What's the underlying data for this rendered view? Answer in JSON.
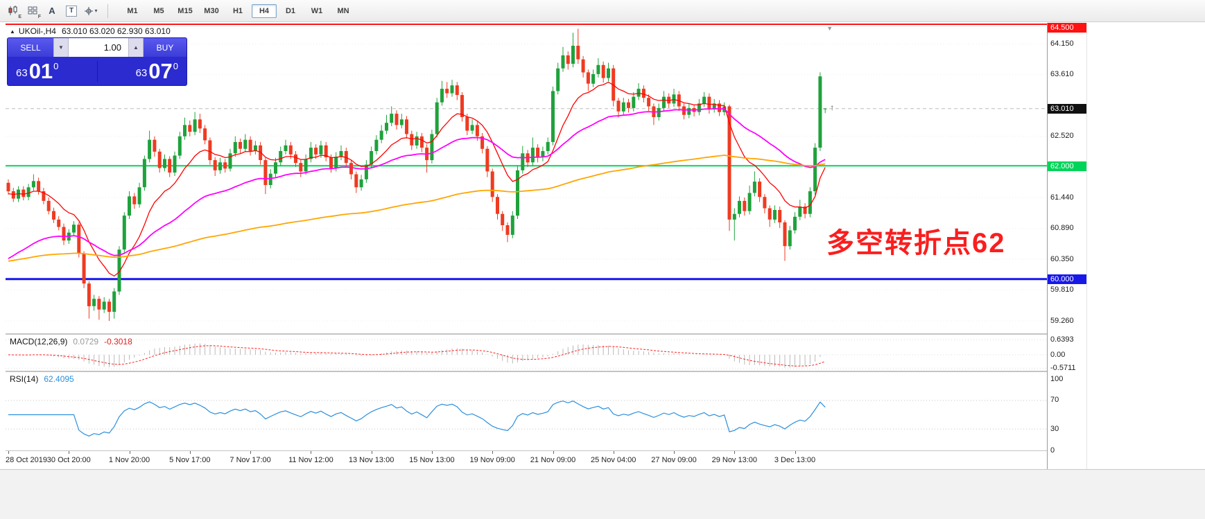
{
  "toolbar": {
    "icon_candles_sub": "E",
    "icon_grid_sub": "F",
    "icon_font": "A",
    "icon_text": "T",
    "cursor_caret": "▾",
    "timeframes": [
      "M1",
      "M5",
      "M15",
      "M30",
      "H1",
      "H4",
      "D1",
      "W1",
      "MN"
    ],
    "active_timeframe": "H4"
  },
  "chart": {
    "symbol_arrow": "▲",
    "symbol": "UKOil-,H4",
    "ohlc": "63.010 63.020 62.930 63.010",
    "trade": {
      "sell_label": "SELL",
      "buy_label": "BUY",
      "volume": "1.00",
      "spinner_down": "▼",
      "spinner_up": "▲",
      "sell_small": "63",
      "sell_big": "01",
      "sell_sup": "0",
      "buy_small": "63",
      "buy_big": "07",
      "buy_sup": "0"
    },
    "annotation": {
      "text": "多空转折点62",
      "color": "#fa1e1e"
    }
  },
  "price_scale": {
    "items": [
      {
        "v": 64.5,
        "label": "64.500",
        "style": "badge-red"
      },
      {
        "v": 64.15,
        "label": "64.150",
        "style": "tick"
      },
      {
        "v": 63.61,
        "label": "63.610",
        "style": "tick"
      },
      {
        "v": 63.01,
        "label": "63.010",
        "style": "badge-black"
      },
      {
        "v": 62.52,
        "label": "62.520",
        "style": "tick"
      },
      {
        "v": 62.0,
        "label": "62.000",
        "style": "badge-green"
      },
      {
        "v": 61.44,
        "label": "61.440",
        "style": "tick"
      },
      {
        "v": 60.89,
        "label": "60.890",
        "style": "tick"
      },
      {
        "v": 60.35,
        "label": "60.350",
        "style": "tick"
      },
      {
        "v": 60.0,
        "label": "60.000",
        "style": "badge-blue"
      },
      {
        "v": 59.81,
        "label": "59.810",
        "style": "tick"
      },
      {
        "v": 59.26,
        "label": "59.260",
        "style": "tick"
      }
    ]
  },
  "macd_panel": {
    "title": "MACD(12,26,9)",
    "value_main": "0.0729",
    "value_signal": "-0.3018",
    "scale": [
      {
        "v": 0.6393,
        "label": "0.6393"
      },
      {
        "v": 0,
        "label": "0.00"
      },
      {
        "v": -0.5711,
        "label": "-0.5711"
      }
    ]
  },
  "rsi_panel": {
    "title": "RSI(14)",
    "value": "62.4095",
    "scale": [
      {
        "v": 100,
        "label": "100"
      },
      {
        "v": 70,
        "label": "70"
      },
      {
        "v": 30,
        "label": "30"
      },
      {
        "v": 0,
        "label": "0"
      }
    ]
  },
  "time_axis": {
    "labels": [
      {
        "i": 0,
        "label": "28 Oct 2019"
      },
      {
        "i": 12,
        "label": "30 Oct 20:00"
      },
      {
        "i": 24,
        "label": "1 Nov 20:00"
      },
      {
        "i": 36,
        "label": "5 Nov 17:00"
      },
      {
        "i": 48,
        "label": "7 Nov 17:00"
      },
      {
        "i": 60,
        "label": "11 Nov 12:00"
      },
      {
        "i": 72,
        "label": "13 Nov 13:00"
      },
      {
        "i": 84,
        "label": "15 Nov 13:00"
      },
      {
        "i": 96,
        "label": "19 Nov 09:00"
      },
      {
        "i": 108,
        "label": "21 Nov 09:00"
      },
      {
        "i": 120,
        "label": "25 Nov 04:00"
      },
      {
        "i": 132,
        "label": "27 Nov 09:00"
      },
      {
        "i": 144,
        "label": "29 Nov 13:00"
      },
      {
        "i": 156,
        "label": "3 Dec 13:00"
      }
    ]
  },
  "chart_data": {
    "type": "candlestick",
    "symbol": "UKOil-",
    "timeframe": "H4",
    "ohlc_current": {
      "open": 63.01,
      "high": 63.02,
      "low": 62.93,
      "close": 63.01
    },
    "bid": 63.01,
    "ylim": [
      59.0,
      64.56
    ],
    "candle_up_color": "#1fa23c",
    "candle_down_color": "#ee3b22",
    "hlines": [
      {
        "price": 64.5,
        "color": "#ff1212",
        "width": 2,
        "label": "64.500"
      },
      {
        "price": 62.0,
        "color": "#00d45a",
        "width": 2,
        "label": "62.000"
      },
      {
        "price": 60.0,
        "color": "#1616ee",
        "width": 3,
        "label": "60.000"
      }
    ],
    "moving_averages": [
      {
        "name": "ma-fast",
        "period": 12,
        "seed": 61.5,
        "color": "#ff0000",
        "width": 1.3
      },
      {
        "name": "ma-medium",
        "period": 40,
        "seed": 60.3,
        "color": "#ff00ff",
        "width": 1.8
      },
      {
        "name": "ma-slow",
        "period": 160,
        "seed": 60.3,
        "color": "#ffa500",
        "width": 1.8
      }
    ],
    "macd": {
      "fast": 12,
      "slow": 26,
      "signal": 9,
      "hist_color": "#b9b9b9",
      "signal_color": "#ff2222",
      "last_macd": 0.0729,
      "last_signal": -0.3018,
      "scale_max": 0.6393,
      "scale_min": -0.5711
    },
    "rsi": {
      "period": 14,
      "color": "#2a8fdd",
      "last": 62.4095,
      "levels": [
        70,
        30
      ],
      "range": [
        0,
        100
      ]
    },
    "candles": [
      [
        61.7,
        61.76,
        61.49,
        61.55
      ],
      [
        61.55,
        61.61,
        61.36,
        61.42
      ],
      [
        61.42,
        61.64,
        61.36,
        61.58
      ],
      [
        61.58,
        61.64,
        61.39,
        61.45
      ],
      [
        61.45,
        61.68,
        61.39,
        61.62
      ],
      [
        61.62,
        61.85,
        61.56,
        61.73
      ],
      [
        61.73,
        61.79,
        61.49,
        61.55
      ],
      [
        61.55,
        61.61,
        61.32,
        61.38
      ],
      [
        61.38,
        61.44,
        61.14,
        61.2
      ],
      [
        61.2,
        61.26,
        60.99,
        61.05
      ],
      [
        61.05,
        61.11,
        60.86,
        60.92
      ],
      [
        60.92,
        60.98,
        60.6,
        60.68
      ],
      [
        60.68,
        60.88,
        60.62,
        60.82
      ],
      [
        60.82,
        61.02,
        60.76,
        60.96
      ],
      [
        60.96,
        61.0,
        60.38,
        60.45
      ],
      [
        60.45,
        60.49,
        59.84,
        59.92
      ],
      [
        59.92,
        59.96,
        59.3,
        59.52
      ],
      [
        59.52,
        59.72,
        59.44,
        59.65
      ],
      [
        59.65,
        59.7,
        59.28,
        59.46
      ],
      [
        59.46,
        59.68,
        59.4,
        59.6
      ],
      [
        59.6,
        59.65,
        59.26,
        59.42
      ],
      [
        59.42,
        59.84,
        59.3,
        59.78
      ],
      [
        59.78,
        60.58,
        59.72,
        60.52
      ],
      [
        60.52,
        61.18,
        60.46,
        61.12
      ],
      [
        61.12,
        61.55,
        61.06,
        61.46
      ],
      [
        61.46,
        61.52,
        61.24,
        61.32
      ],
      [
        61.32,
        61.7,
        61.26,
        61.62
      ],
      [
        61.62,
        62.18,
        61.56,
        62.12
      ],
      [
        62.12,
        62.62,
        62.06,
        62.46
      ],
      [
        62.46,
        62.52,
        62.16,
        62.25
      ],
      [
        62.25,
        62.3,
        61.88,
        61.96
      ],
      [
        61.96,
        62.2,
        61.9,
        62.12
      ],
      [
        62.12,
        62.17,
        61.8,
        61.88
      ],
      [
        61.88,
        62.25,
        61.82,
        62.18
      ],
      [
        62.18,
        62.6,
        62.12,
        62.52
      ],
      [
        62.52,
        62.85,
        62.46,
        62.72
      ],
      [
        62.72,
        62.8,
        62.52,
        62.6
      ],
      [
        62.6,
        62.95,
        62.54,
        62.82
      ],
      [
        62.82,
        62.92,
        62.58,
        62.66
      ],
      [
        62.66,
        62.72,
        62.38,
        62.45
      ],
      [
        62.45,
        62.5,
        62.02,
        62.1
      ],
      [
        62.1,
        62.15,
        61.82,
        61.92
      ],
      [
        61.92,
        62.14,
        61.86,
        62.06
      ],
      [
        62.06,
        62.12,
        61.88,
        61.95
      ],
      [
        61.95,
        62.3,
        61.9,
        62.22
      ],
      [
        62.22,
        62.52,
        62.16,
        62.42
      ],
      [
        62.42,
        62.48,
        62.22,
        62.3
      ],
      [
        62.3,
        62.56,
        62.24,
        62.46
      ],
      [
        62.46,
        62.52,
        62.18,
        62.26
      ],
      [
        62.26,
        62.44,
        62.2,
        62.36
      ],
      [
        62.36,
        62.42,
        62.02,
        62.1
      ],
      [
        62.1,
        62.14,
        61.5,
        61.66
      ],
      [
        61.66,
        61.94,
        61.6,
        61.86
      ],
      [
        61.86,
        62.14,
        61.8,
        62.06
      ],
      [
        62.06,
        62.34,
        62.0,
        62.26
      ],
      [
        62.26,
        62.46,
        62.2,
        62.36
      ],
      [
        62.36,
        62.42,
        62.12,
        62.2
      ],
      [
        62.2,
        62.26,
        61.98,
        62.05
      ],
      [
        62.05,
        62.1,
        61.8,
        61.9
      ],
      [
        61.9,
        62.2,
        61.84,
        62.12
      ],
      [
        62.12,
        62.42,
        62.06,
        62.32
      ],
      [
        62.32,
        62.38,
        62.12,
        62.2
      ],
      [
        62.2,
        62.44,
        62.14,
        62.36
      ],
      [
        62.36,
        62.42,
        62.08,
        62.15
      ],
      [
        62.15,
        62.2,
        61.88,
        61.96
      ],
      [
        61.96,
        62.24,
        61.9,
        62.16
      ],
      [
        62.16,
        62.36,
        62.1,
        62.26
      ],
      [
        62.26,
        62.32,
        61.98,
        62.05
      ],
      [
        62.05,
        62.1,
        61.76,
        61.85
      ],
      [
        61.85,
        61.9,
        61.52,
        61.62
      ],
      [
        61.62,
        61.84,
        61.56,
        61.76
      ],
      [
        61.76,
        62.1,
        61.7,
        62.02
      ],
      [
        62.02,
        62.34,
        61.96,
        62.26
      ],
      [
        62.26,
        62.54,
        62.2,
        62.46
      ],
      [
        62.46,
        62.72,
        62.4,
        62.62
      ],
      [
        62.62,
        62.9,
        62.56,
        62.76
      ],
      [
        62.76,
        63.05,
        62.7,
        62.92
      ],
      [
        62.92,
        62.98,
        62.64,
        62.72
      ],
      [
        62.72,
        62.92,
        62.66,
        62.82
      ],
      [
        62.82,
        62.88,
        62.48,
        62.56
      ],
      [
        62.56,
        62.62,
        62.28,
        62.36
      ],
      [
        62.36,
        62.6,
        62.3,
        62.52
      ],
      [
        62.52,
        62.58,
        62.24,
        62.32
      ],
      [
        62.32,
        62.38,
        61.88,
        62.1
      ],
      [
        62.1,
        62.64,
        62.04,
        62.56
      ],
      [
        62.56,
        63.2,
        62.5,
        63.12
      ],
      [
        63.12,
        63.5,
        63.06,
        63.36
      ],
      [
        63.36,
        63.48,
        63.2,
        63.28
      ],
      [
        63.28,
        63.52,
        63.22,
        63.42
      ],
      [
        63.42,
        63.48,
        63.16,
        63.25
      ],
      [
        63.25,
        63.3,
        62.78,
        62.86
      ],
      [
        62.86,
        62.92,
        62.54,
        62.62
      ],
      [
        62.62,
        62.82,
        62.56,
        62.72
      ],
      [
        62.72,
        62.78,
        62.44,
        62.52
      ],
      [
        62.52,
        62.58,
        62.22,
        62.3
      ],
      [
        62.3,
        62.35,
        61.8,
        61.9
      ],
      [
        61.9,
        61.95,
        61.36,
        61.45
      ],
      [
        61.45,
        61.5,
        61.05,
        61.15
      ],
      [
        61.15,
        61.2,
        60.85,
        60.95
      ],
      [
        60.95,
        61.0,
        60.65,
        60.78
      ],
      [
        60.78,
        61.2,
        60.72,
        61.12
      ],
      [
        61.12,
        62.0,
        61.06,
        61.92
      ],
      [
        61.92,
        62.35,
        61.86,
        62.22
      ],
      [
        62.22,
        62.28,
        61.98,
        62.06
      ],
      [
        62.06,
        62.5,
        62.0,
        62.32
      ],
      [
        62.32,
        62.38,
        62.06,
        62.15
      ],
      [
        62.15,
        62.34,
        62.08,
        62.26
      ],
      [
        62.26,
        62.5,
        62.2,
        62.42
      ],
      [
        62.42,
        63.4,
        62.36,
        63.32
      ],
      [
        63.32,
        63.82,
        63.26,
        63.72
      ],
      [
        63.72,
        64.1,
        63.66,
        63.95
      ],
      [
        63.95,
        64.02,
        63.7,
        63.8
      ],
      [
        63.8,
        64.35,
        63.74,
        64.12
      ],
      [
        64.12,
        64.42,
        63.8,
        63.88
      ],
      [
        63.88,
        63.94,
        63.56,
        63.65
      ],
      [
        63.65,
        63.7,
        63.32,
        63.45
      ],
      [
        63.45,
        63.7,
        63.39,
        63.62
      ],
      [
        63.62,
        63.9,
        63.56,
        63.78
      ],
      [
        63.78,
        63.84,
        63.47,
        63.55
      ],
      [
        63.55,
        63.82,
        63.49,
        63.72
      ],
      [
        63.72,
        63.78,
        63.05,
        63.15
      ],
      [
        63.15,
        63.2,
        62.85,
        62.96
      ],
      [
        62.96,
        63.2,
        62.9,
        63.12
      ],
      [
        63.12,
        63.18,
        62.94,
        63.02
      ],
      [
        63.02,
        63.3,
        62.96,
        63.22
      ],
      [
        63.22,
        63.46,
        63.16,
        63.36
      ],
      [
        63.36,
        63.42,
        63.12,
        63.2
      ],
      [
        63.2,
        63.26,
        62.97,
        63.05
      ],
      [
        63.05,
        63.1,
        62.72,
        62.86
      ],
      [
        62.86,
        63.1,
        62.8,
        63.02
      ],
      [
        63.02,
        63.32,
        62.96,
        63.22
      ],
      [
        63.22,
        63.28,
        63.02,
        63.1
      ],
      [
        63.1,
        63.36,
        63.04,
        63.26
      ],
      [
        63.26,
        63.32,
        62.97,
        63.05
      ],
      [
        63.05,
        63.1,
        62.82,
        62.9
      ],
      [
        62.9,
        63.1,
        62.84,
        63.02
      ],
      [
        63.02,
        63.08,
        62.87,
        62.95
      ],
      [
        62.95,
        63.18,
        62.89,
        63.1
      ],
      [
        63.1,
        63.3,
        63.04,
        63.22
      ],
      [
        63.22,
        63.28,
        62.92,
        63.0
      ],
      [
        63.0,
        63.18,
        62.94,
        63.1
      ],
      [
        63.1,
        63.16,
        62.88,
        62.95
      ],
      [
        62.95,
        63.12,
        62.89,
        63.05
      ],
      [
        63.05,
        63.08,
        60.85,
        61.05
      ],
      [
        61.05,
        61.25,
        60.68,
        61.15
      ],
      [
        61.15,
        61.46,
        61.09,
        61.38
      ],
      [
        61.38,
        61.44,
        61.12,
        61.2
      ],
      [
        61.2,
        61.65,
        61.14,
        61.52
      ],
      [
        61.52,
        61.9,
        61.46,
        61.72
      ],
      [
        61.72,
        61.78,
        61.36,
        61.45
      ],
      [
        61.45,
        61.5,
        61.16,
        61.25
      ],
      [
        61.25,
        61.3,
        60.92,
        61.05
      ],
      [
        61.05,
        61.3,
        60.99,
        61.22
      ],
      [
        61.22,
        61.28,
        60.9,
        61.0
      ],
      [
        61.0,
        61.04,
        60.32,
        60.58
      ],
      [
        60.58,
        60.94,
        60.52,
        60.86
      ],
      [
        60.86,
        61.18,
        60.8,
        61.1
      ],
      [
        61.1,
        61.4,
        61.04,
        61.28
      ],
      [
        61.28,
        61.34,
        61.07,
        61.15
      ],
      [
        61.15,
        61.62,
        61.09,
        61.55
      ],
      [
        61.55,
        62.4,
        61.49,
        62.32
      ],
      [
        62.32,
        63.65,
        62.26,
        63.58
      ],
      [
        63.01,
        63.02,
        62.93,
        63.01
      ]
    ]
  }
}
